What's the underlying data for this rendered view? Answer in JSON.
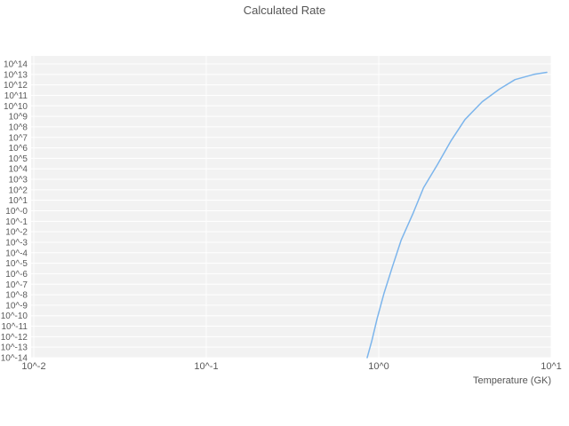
{
  "chart_data": {
    "type": "line",
    "title": "Calculated Rate",
    "xlabel": "Temperature (GK)",
    "ylabel": "",
    "x_scale": "log",
    "y_scale": "log",
    "xlim_log": [
      -2,
      1
    ],
    "ylim_log": [
      -14,
      14
    ],
    "grid": "white-on-gray",
    "legend": "none",
    "plot_bg": "#f2f2f2",
    "grid_color": "#ffffff",
    "text_color": "#595959",
    "x_ticks": [
      {
        "exp": -2,
        "label": "10^-2"
      },
      {
        "exp": -1,
        "label": "10^-1"
      },
      {
        "exp": 0,
        "label": "10^0"
      },
      {
        "exp": 1,
        "label": "10^1"
      }
    ],
    "y_ticks": [
      {
        "exp": 14,
        "label": "10^14"
      },
      {
        "exp": 13,
        "label": "10^13"
      },
      {
        "exp": 12,
        "label": "10^12"
      },
      {
        "exp": 11,
        "label": "10^11"
      },
      {
        "exp": 10,
        "label": "10^10"
      },
      {
        "exp": 9,
        "label": "10^9"
      },
      {
        "exp": 8,
        "label": "10^8"
      },
      {
        "exp": 7,
        "label": "10^7"
      },
      {
        "exp": 6,
        "label": "10^6"
      },
      {
        "exp": 5,
        "label": "10^5"
      },
      {
        "exp": 4,
        "label": "10^4"
      },
      {
        "exp": 3,
        "label": "10^3"
      },
      {
        "exp": 2,
        "label": "10^2"
      },
      {
        "exp": 1,
        "label": "10^1"
      },
      {
        "exp": 0,
        "label": "10^-0"
      },
      {
        "exp": -1,
        "label": "10^-1"
      },
      {
        "exp": -2,
        "label": "10^-2"
      },
      {
        "exp": -3,
        "label": "10^-3"
      },
      {
        "exp": -4,
        "label": "10^-4"
      },
      {
        "exp": -5,
        "label": "10^-5"
      },
      {
        "exp": -6,
        "label": "10^-6"
      },
      {
        "exp": -7,
        "label": "10^-7"
      },
      {
        "exp": -8,
        "label": "10^-8"
      },
      {
        "exp": -9,
        "label": "10^-9"
      },
      {
        "exp": -10,
        "label": "10^-10"
      },
      {
        "exp": -11,
        "label": "10^-11"
      },
      {
        "exp": -12,
        "label": "10^-12"
      },
      {
        "exp": -13,
        "label": "10^-13"
      },
      {
        "exp": -14,
        "label": "10^-14"
      }
    ],
    "series": [
      {
        "name": "Calculated Rate",
        "color": "#7cb5ec",
        "points_logT_logRate": [
          [
            -0.067,
            -14.0
          ],
          [
            -0.04,
            -12.4
          ],
          [
            -0.01,
            -10.3
          ],
          [
            0.03,
            -7.9
          ],
          [
            0.08,
            -5.3
          ],
          [
            0.13,
            -2.8
          ],
          [
            0.2,
            -0.2
          ],
          [
            0.26,
            2.2
          ],
          [
            0.34,
            4.4
          ],
          [
            0.42,
            6.7
          ],
          [
            0.5,
            8.7
          ],
          [
            0.6,
            10.4
          ],
          [
            0.7,
            11.6
          ],
          [
            0.79,
            12.5
          ],
          [
            0.9,
            13.0
          ],
          [
            0.974,
            13.2
          ]
        ]
      }
    ]
  }
}
